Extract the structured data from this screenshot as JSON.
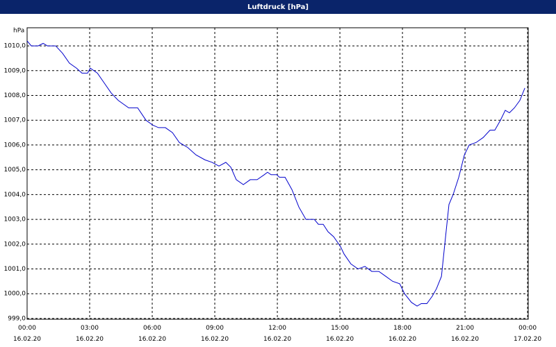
{
  "chart_data": {
    "type": "line",
    "title": "Luftdruck [hPa]",
    "y_label": "hPa",
    "color": "#0000cc",
    "grid": true,
    "x": [
      0,
      0.2,
      0.53,
      0.77,
      0.97,
      1.37,
      1.7,
      2.03,
      2.37,
      2.63,
      2.9,
      3.03,
      3.37,
      3.7,
      4.03,
      4.37,
      4.87,
      5.3,
      5.7,
      6.03,
      6.3,
      6.63,
      6.97,
      7.3,
      7.7,
      8.1,
      8.53,
      8.87,
      9.2,
      9.53,
      9.77,
      10.03,
      10.37,
      10.7,
      11.03,
      11.37,
      11.53,
      11.7,
      11.97,
      12.1,
      12.37,
      12.7,
      13.03,
      13.37,
      13.77,
      13.97,
      14.2,
      14.43,
      14.7,
      15.03,
      15.2,
      15.53,
      15.87,
      16.2,
      16.53,
      16.87,
      17.2,
      17.53,
      17.87,
      18.1,
      18.43,
      18.7,
      18.9,
      19.17,
      19.43,
      19.63,
      19.87,
      20.03,
      20.23,
      20.43,
      20.7,
      20.97,
      21.2,
      21.53,
      21.87,
      22.2,
      22.43,
      22.7,
      22.93,
      23.13,
      23.37,
      23.63,
      23.87
    ],
    "values": [
      1010.2,
      1010.0,
      1010.0,
      1010.1,
      1010.0,
      1010.0,
      1009.7,
      1009.3,
      1009.1,
      1008.9,
      1008.9,
      1009.1,
      1008.9,
      1008.5,
      1008.1,
      1007.8,
      1007.5,
      1007.5,
      1007.0,
      1006.8,
      1006.7,
      1006.7,
      1006.5,
      1006.1,
      1005.9,
      1005.6,
      1005.4,
      1005.3,
      1005.15,
      1005.3,
      1005.1,
      1004.6,
      1004.4,
      1004.6,
      1004.6,
      1004.8,
      1004.9,
      1004.8,
      1004.8,
      1004.7,
      1004.7,
      1004.2,
      1003.5,
      1003.0,
      1003.0,
      1002.8,
      1002.8,
      1002.5,
      1002.3,
      1001.9,
      1001.6,
      1001.2,
      1001.0,
      1001.1,
      1000.9,
      1000.9,
      1000.7,
      1000.5,
      1000.4,
      1000.0,
      999.65,
      999.5,
      999.6,
      999.6,
      999.9,
      1000.2,
      1000.7,
      1002.0,
      1003.6,
      1004.0,
      1004.7,
      1005.6,
      1006.0,
      1006.1,
      1006.3,
      1006.6,
      1006.6,
      1007.0,
      1007.4,
      1007.3,
      1007.5,
      1007.8,
      1008.3
    ],
    "xlim": [
      0,
      24.03
    ],
    "ylim": [
      998.97,
      1010.73
    ],
    "xticks": [
      {
        "value": 0,
        "label": "00:00\n16.02.20"
      },
      {
        "value": 3,
        "label": "03:00\n16.02.20"
      },
      {
        "value": 6,
        "label": "06:00\n16.02.20"
      },
      {
        "value": 9,
        "label": "09:00\n16.02.20"
      },
      {
        "value": 12,
        "label": "12:00\n16.02.20"
      },
      {
        "value": 15,
        "label": "15:00\n16.02.20"
      },
      {
        "value": 18,
        "label": "18:00\n16.02.20"
      },
      {
        "value": 21,
        "label": "21:00\n16.02.20"
      },
      {
        "value": 24,
        "label": "00:00\n17.02.20"
      }
    ],
    "yticks": [
      {
        "value": 999,
        "label": "999,0"
      },
      {
        "value": 1000,
        "label": "1000,0"
      },
      {
        "value": 1001,
        "label": "1001,0"
      },
      {
        "value": 1002,
        "label": "1002,0"
      },
      {
        "value": 1003,
        "label": "1003,0"
      },
      {
        "value": 1004,
        "label": "1004,0"
      },
      {
        "value": 1005,
        "label": "1005,0"
      },
      {
        "value": 1006,
        "label": "1006,0"
      },
      {
        "value": 1007,
        "label": "1007,0"
      },
      {
        "value": 1008,
        "label": "1008,0"
      },
      {
        "value": 1009,
        "label": "1009,0"
      },
      {
        "value": 1010,
        "label": "1010,0"
      }
    ]
  }
}
